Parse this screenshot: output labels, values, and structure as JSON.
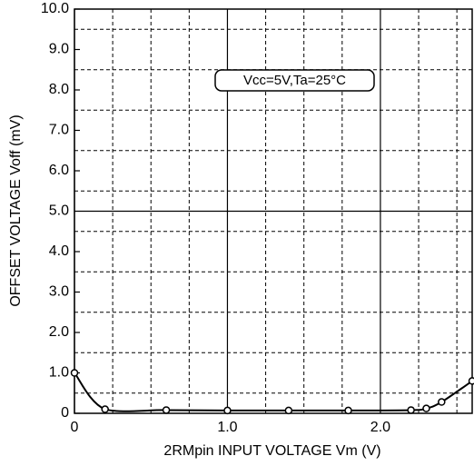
{
  "chart_data": {
    "type": "line",
    "xlabel": "2RMpin INPUT VOLTAGE Vm (V)",
    "ylabel": "OFFSET VOLTAGE Voff  (mV)",
    "annotation": "Vcc=5V,Ta=25°C",
    "x": [
      0,
      0.2,
      0.6,
      1.0,
      1.4,
      1.79,
      2.2,
      2.3,
      2.4,
      2.6
    ],
    "series": [
      {
        "name": "Voff",
        "color": "#000000",
        "values": [
          1.0,
          0.1,
          0.08,
          0.07,
          0.07,
          0.07,
          0.08,
          0.12,
          0.28,
          0.8
        ]
      }
    ],
    "xlim": [
      0,
      2.6
    ],
    "ylim": [
      0,
      10
    ],
    "xticks": [
      0,
      {
        "value": 1,
        "label": "1.0"
      },
      {
        "value": 2,
        "label": "2.0"
      }
    ],
    "yticks": [
      0,
      {
        "value": 1,
        "label": "1.0"
      },
      {
        "value": 2,
        "label": "2.0"
      },
      {
        "value": 3,
        "label": "3.0"
      },
      {
        "value": 4,
        "label": "4.0"
      },
      {
        "value": 5,
        "label": "5.0"
      },
      {
        "value": 6,
        "label": "6.0"
      },
      {
        "value": 7,
        "label": "7.0"
      },
      {
        "value": 8,
        "label": "8.0"
      },
      {
        "value": 9,
        "label": "9.0"
      },
      {
        "value": 10,
        "label": "10.0"
      }
    ],
    "xticks_minor": [
      0.25,
      0.5,
      0.75,
      1.25,
      1.5,
      1.75,
      2.25,
      2.5
    ],
    "yticks_minor": [
      0.5,
      1.5,
      2.5,
      3.5,
      4.5,
      5.5,
      6.5,
      7.5,
      8.5,
      9.5
    ],
    "grid": true
  }
}
